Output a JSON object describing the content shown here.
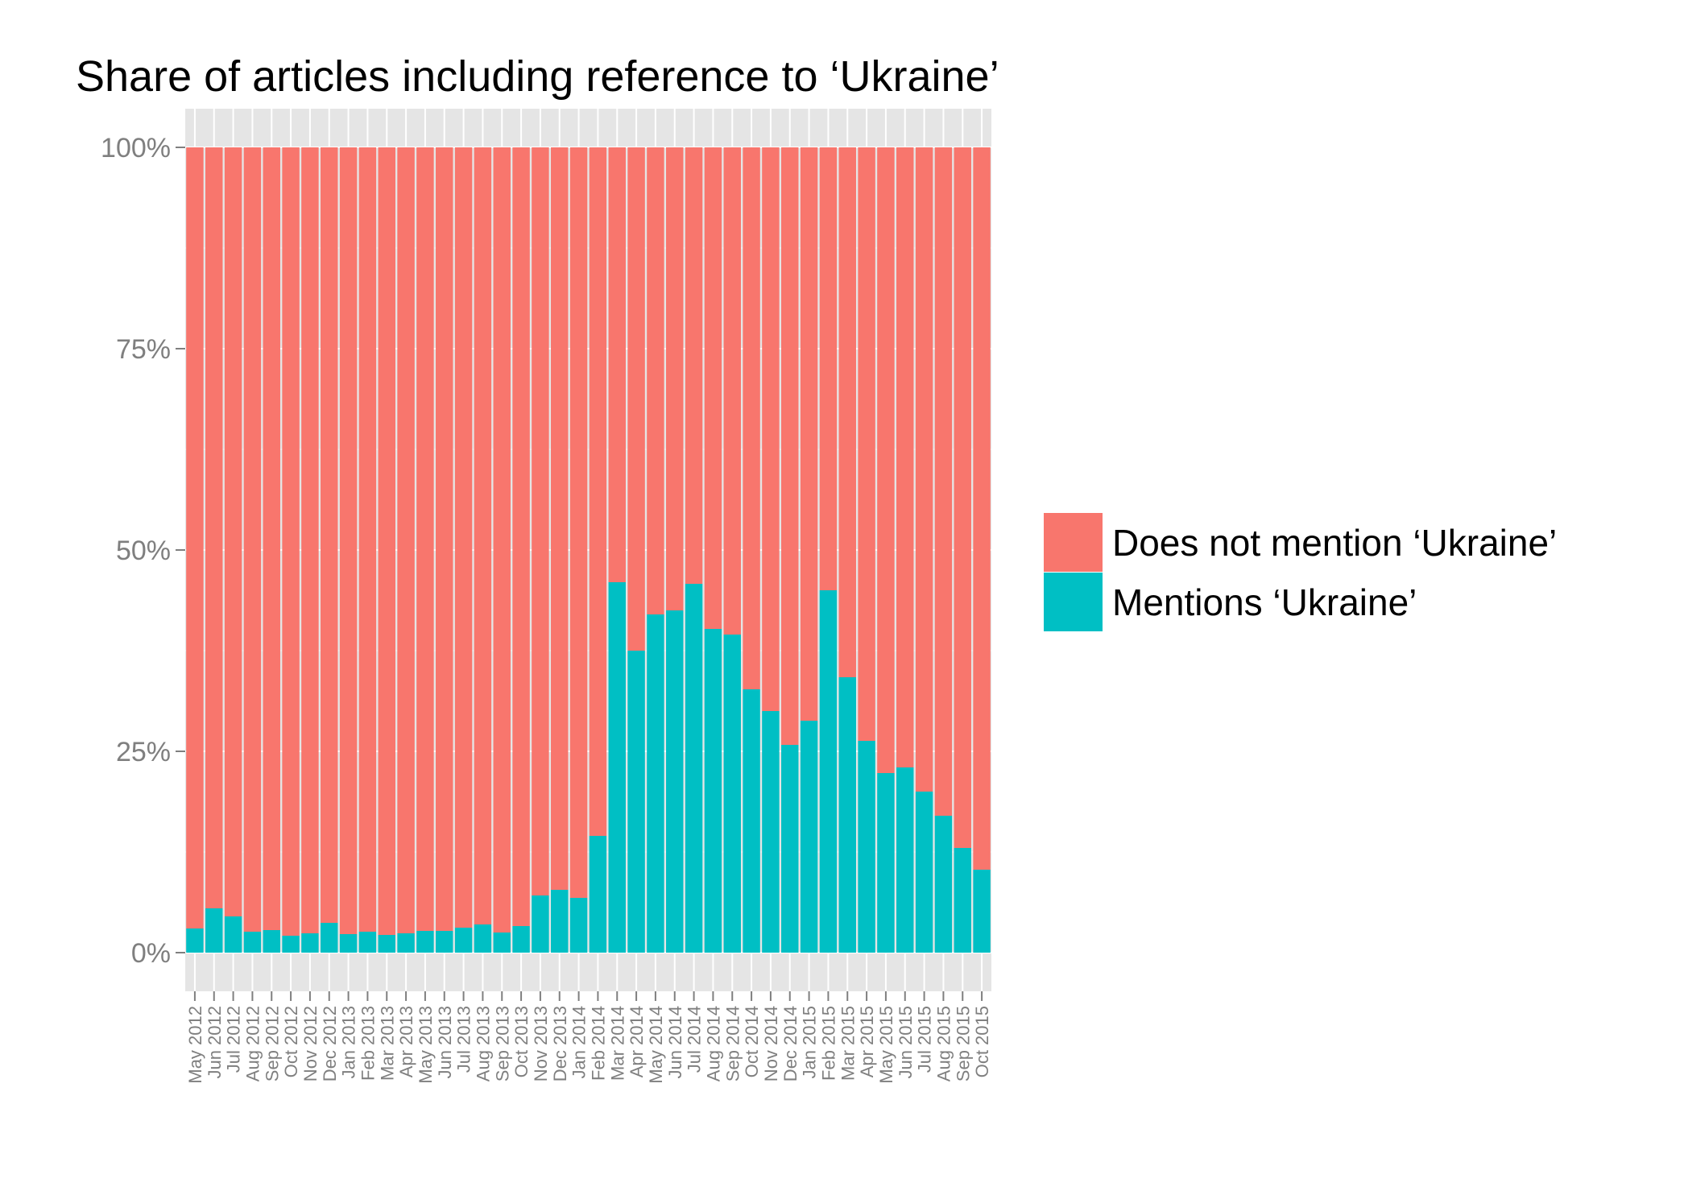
{
  "chart_data": {
    "type": "bar",
    "stacked": true,
    "percent": true,
    "title": "Share of articles including reference to ‘Ukraine’",
    "xlabel": "",
    "ylabel": "",
    "ylim": [
      0,
      1
    ],
    "yticks": [
      "0%",
      "25%",
      "50%",
      "75%",
      "100%"
    ],
    "grid": true,
    "legend_position": "right",
    "categories": [
      "May 2012",
      "Jun 2012",
      "Jul 2012",
      "Aug 2012",
      "Sep 2012",
      "Oct 2012",
      "Nov 2012",
      "Dec 2012",
      "Jan 2013",
      "Feb 2013",
      "Mar 2013",
      "Apr 2013",
      "May 2013",
      "Jun 2013",
      "Jul 2013",
      "Aug 2013",
      "Sep 2013",
      "Oct 2013",
      "Nov 2013",
      "Dec 2013",
      "Jan 2014",
      "Feb 2014",
      "Mar 2014",
      "Apr 2014",
      "May 2014",
      "Jun 2014",
      "Jul 2014",
      "Aug 2014",
      "Sep 2014",
      "Oct 2014",
      "Nov 2014",
      "Dec 2014",
      "Jan 2015",
      "Feb 2015",
      "Mar 2015",
      "Apr 2015",
      "May 2015",
      "Jun 2015",
      "Jul 2015",
      "Aug 2015",
      "Sep 2015",
      "Oct 2015"
    ],
    "series": [
      {
        "name": "Mentions ‘Ukraine’",
        "color": "#00BFC4",
        "values": [
          0.03,
          0.055,
          0.045,
          0.026,
          0.028,
          0.021,
          0.024,
          0.037,
          0.023,
          0.026,
          0.022,
          0.024,
          0.027,
          0.027,
          0.031,
          0.035,
          0.025,
          0.033,
          0.071,
          0.078,
          0.068,
          0.145,
          0.46,
          0.375,
          0.42,
          0.425,
          0.458,
          0.402,
          0.395,
          0.327,
          0.3,
          0.258,
          0.288,
          0.45,
          0.342,
          0.263,
          0.223,
          0.23,
          0.2,
          0.17,
          0.13,
          0.103
        ]
      },
      {
        "name": "Does not mention ‘Ukraine’",
        "color": "#F8766D",
        "values": [
          0.97,
          0.945,
          0.955,
          0.974,
          0.972,
          0.979,
          0.976,
          0.963,
          0.977,
          0.974,
          0.978,
          0.976,
          0.973,
          0.973,
          0.969,
          0.965,
          0.975,
          0.967,
          0.929,
          0.922,
          0.932,
          0.855,
          0.54,
          0.625,
          0.58,
          0.575,
          0.542,
          0.598,
          0.605,
          0.673,
          0.7,
          0.742,
          0.712,
          0.55,
          0.658,
          0.737,
          0.777,
          0.77,
          0.8,
          0.83,
          0.87,
          0.897
        ]
      }
    ],
    "legend": [
      "Does not mention ‘Ukraine’",
      "Mentions ‘Ukraine’"
    ]
  }
}
